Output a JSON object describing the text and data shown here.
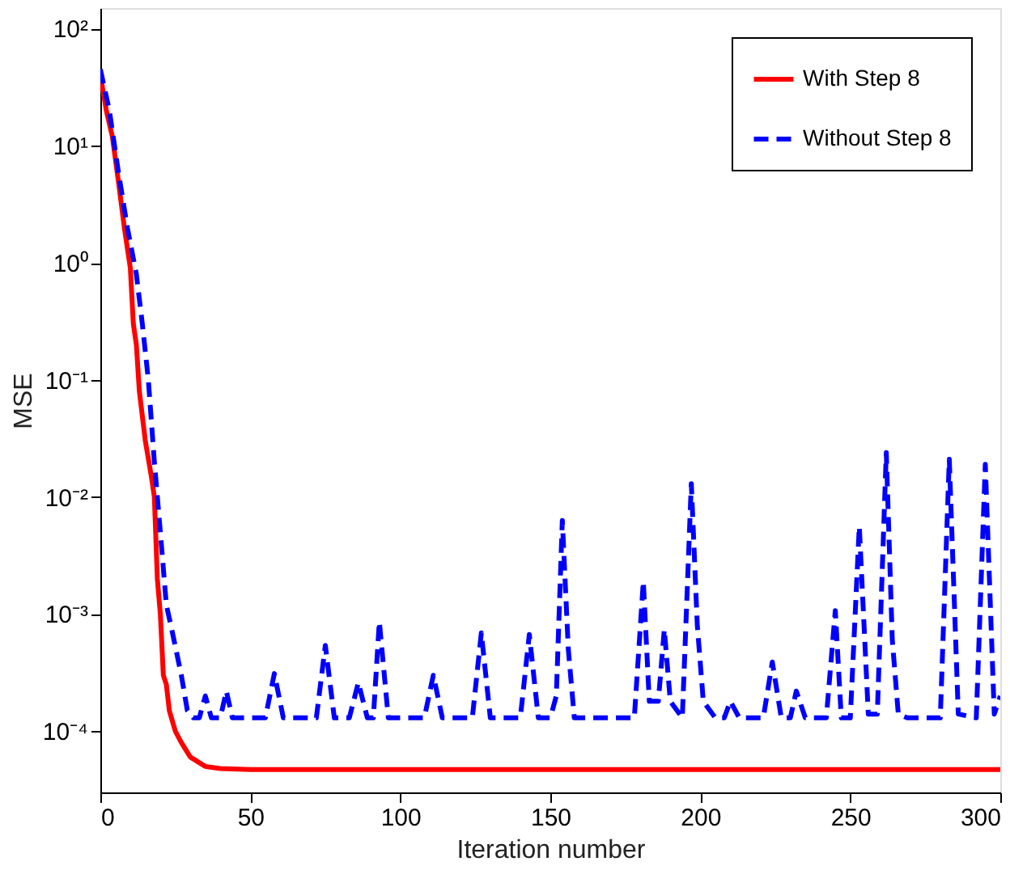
{
  "chart_data": {
    "type": "line",
    "xlabel": "Iteration number",
    "ylabel": "MSE",
    "log": true,
    "grid": false,
    "legend": "top right",
    "xlim": [
      0,
      300
    ],
    "xticks": [
      0,
      50,
      100,
      150,
      200,
      250,
      300
    ],
    "ylim": [
      3e-05,
      150
    ],
    "yticks": [
      {
        "value": 0.0001,
        "label": "10⁻⁴"
      },
      {
        "value": 0.001,
        "label": "10⁻³"
      },
      {
        "value": 0.01,
        "label": "10⁻²"
      },
      {
        "value": 0.1,
        "label": "10⁻¹"
      },
      {
        "value": 1,
        "label": "10⁰"
      },
      {
        "value": 10,
        "label": "10¹"
      },
      {
        "value": 100,
        "label": "10²"
      }
    ],
    "series": [
      {
        "name": "With Step 8",
        "color": "#ff0000",
        "line_style": "solid",
        "x": [
          0,
          2,
          4,
          6,
          8,
          10,
          11,
          12,
          13,
          15,
          17,
          18,
          19,
          20,
          21,
          22,
          23,
          25,
          27,
          30,
          35,
          40,
          50,
          300
        ],
        "values": [
          40,
          20,
          12,
          5,
          2,
          0.9,
          0.3,
          0.2,
          0.08,
          0.03,
          0.015,
          0.01,
          0.002,
          0.001,
          0.0003,
          0.00025,
          0.00015,
          0.0001,
          8e-05,
          6e-05,
          5e-05,
          4.8e-05,
          4.7e-05,
          4.7e-05
        ]
      },
      {
        "name": "Without Step 8",
        "color": "#0000ff",
        "line_style": "dashed",
        "x": [
          0,
          3,
          6,
          9,
          12,
          14,
          16,
          18,
          20,
          22,
          24,
          27,
          29,
          31,
          33,
          35,
          37,
          40,
          42,
          44,
          47,
          55,
          58,
          61,
          72,
          75,
          78,
          83,
          86,
          89,
          91,
          93,
          96,
          108,
          111,
          114,
          124,
          127,
          130,
          140,
          143,
          146,
          150,
          152,
          154,
          156,
          158,
          162,
          178,
          181,
          183,
          186,
          188,
          190,
          194,
          197,
          199,
          201,
          205,
          208,
          210,
          213,
          221,
          224,
          227,
          230,
          232,
          235,
          242,
          245,
          247,
          250,
          253,
          256,
          259,
          262,
          264,
          266,
          269,
          280,
          283,
          286,
          292,
          295,
          298,
          300
        ],
        "values": [
          45,
          20,
          6,
          2,
          0.8,
          0.3,
          0.1,
          0.02,
          0.005,
          0.0012,
          0.0007,
          0.0003,
          0.00015,
          0.00013,
          0.00013,
          0.0002,
          0.00013,
          0.00013,
          0.00022,
          0.00013,
          0.00013,
          0.00013,
          0.00031,
          0.00013,
          0.00013,
          0.00054,
          0.00013,
          0.00013,
          0.00026,
          0.00013,
          0.00013,
          0.00086,
          0.00013,
          0.00013,
          0.0003,
          0.00013,
          0.00013,
          0.00069,
          0.00013,
          0.00013,
          0.00067,
          0.00013,
          0.00013,
          0.0002,
          0.0063,
          0.0005,
          0.00013,
          0.00013,
          0.00013,
          0.0019,
          0.00018,
          0.00018,
          0.00074,
          0.00018,
          0.00013,
          0.013,
          0.0008,
          0.00018,
          0.00013,
          0.00013,
          0.00018,
          0.00013,
          0.00013,
          0.00039,
          0.00013,
          0.00013,
          0.00022,
          0.00013,
          0.00013,
          0.00107,
          0.00013,
          0.00013,
          0.0056,
          0.00014,
          0.00014,
          0.024,
          0.0006,
          0.00014,
          0.00013,
          0.00013,
          0.021,
          0.00014,
          0.00013,
          0.019,
          0.00014,
          0.0002
        ]
      }
    ]
  }
}
